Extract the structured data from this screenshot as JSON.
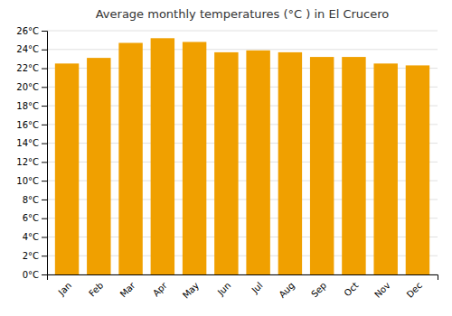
{
  "chart_data": {
    "type": "bar",
    "title": "Average monthly temperatures (°C ) in El Crucero",
    "categories": [
      "Jan",
      "Feb",
      "Mar",
      "Apr",
      "May",
      "Jun",
      "Jul",
      "Aug",
      "Sep",
      "Oct",
      "Nov",
      "Dec"
    ],
    "values": [
      22.5,
      23.1,
      24.7,
      25.2,
      24.8,
      23.7,
      23.9,
      23.7,
      23.2,
      23.2,
      22.5,
      22.3
    ],
    "color": "#F0A000",
    "ylim": [
      0,
      26
    ],
    "yticks": [
      {
        "value": 0,
        "label": "0°C"
      },
      {
        "value": 2,
        "label": "2°C"
      },
      {
        "value": 4,
        "label": "4°C"
      },
      {
        "value": 6,
        "label": "6°C"
      },
      {
        "value": 8,
        "label": "8°C"
      },
      {
        "value": 10,
        "label": "10°C"
      },
      {
        "value": 12,
        "label": "12°C"
      },
      {
        "value": 14,
        "label": "14°C"
      },
      {
        "value": 16,
        "label": "16°C"
      },
      {
        "value": 18,
        "label": "18°C"
      },
      {
        "value": 20,
        "label": "20°C"
      },
      {
        "value": 22,
        "label": "22°C"
      },
      {
        "value": 24,
        "label": "24°C"
      },
      {
        "value": 26,
        "label": "26°C"
      }
    ],
    "grid": true
  }
}
